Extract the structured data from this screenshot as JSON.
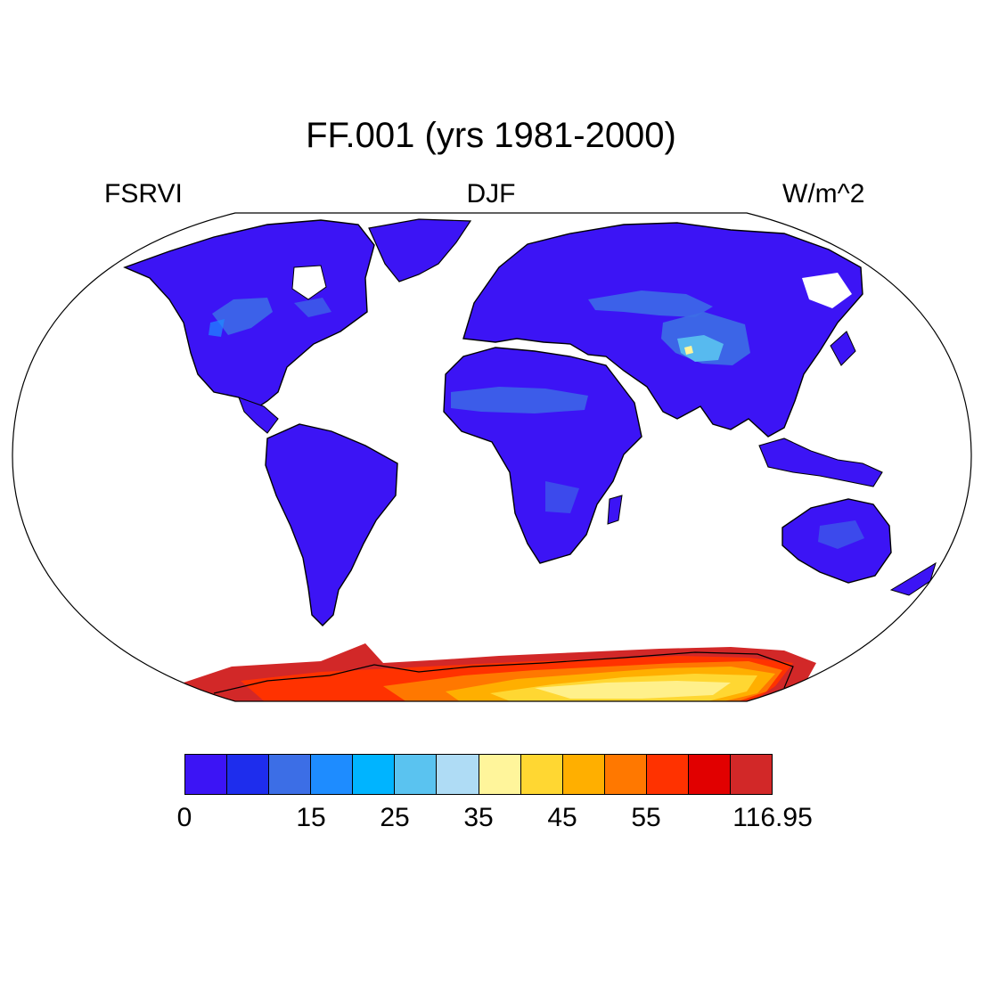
{
  "title": "FF.001 (yrs 1981-2000)",
  "subtitle_left": "FSRVI",
  "subtitle_center": "DJF",
  "subtitle_right": "W/m^2",
  "colorbar": {
    "colors": [
      "#3c14f5",
      "#1e2ded",
      "#3c6ee6",
      "#1e8cff",
      "#00b4ff",
      "#5ac3f0",
      "#afdcf5",
      "#fff59b",
      "#ffd732",
      "#ffaf00",
      "#ff7800",
      "#ff3200",
      "#e10000",
      "#d22828"
    ],
    "labels": [
      "0",
      "15",
      "25",
      "35",
      "45",
      "55",
      "116.95"
    ]
  }
}
